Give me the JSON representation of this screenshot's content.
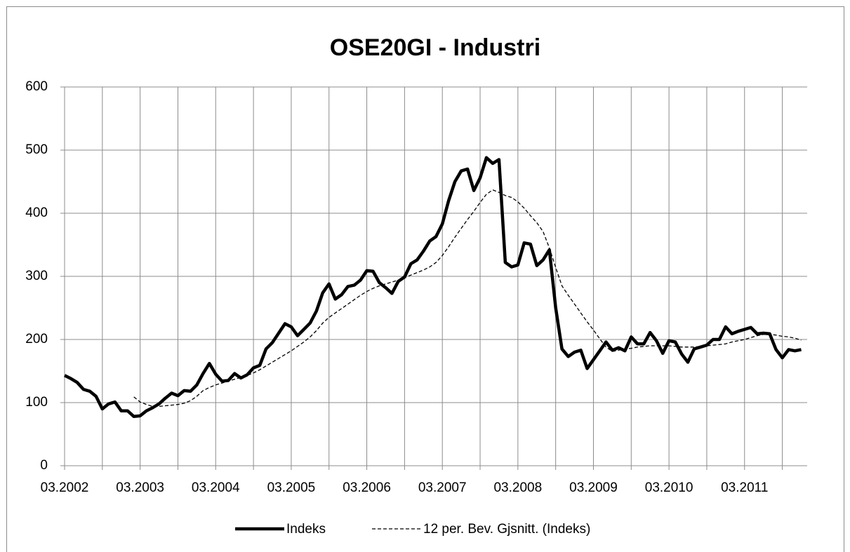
{
  "chart_data": {
    "type": "line",
    "title": "OSE20GI - Industri",
    "categories": [
      "03.2002",
      null,
      null,
      null,
      null,
      null,
      null,
      null,
      null,
      null,
      null,
      null,
      "03.2003",
      null,
      null,
      null,
      null,
      null,
      null,
      null,
      null,
      null,
      null,
      null,
      "03.2004",
      null,
      null,
      null,
      null,
      null,
      null,
      null,
      null,
      null,
      null,
      null,
      "03.2005",
      null,
      null,
      null,
      null,
      null,
      null,
      null,
      null,
      null,
      null,
      null,
      "03.2006",
      null,
      null,
      null,
      null,
      null,
      null,
      null,
      null,
      null,
      null,
      null,
      "03.2007",
      null,
      null,
      null,
      null,
      null,
      null,
      null,
      null,
      null,
      null,
      null,
      "03.2008",
      null,
      null,
      null,
      null,
      null,
      null,
      null,
      null,
      null,
      null,
      null,
      "03.2009",
      null,
      null,
      null,
      null,
      null,
      null,
      null,
      null,
      null,
      null,
      null,
      "03.2010",
      null,
      null,
      null,
      null,
      null,
      null,
      null,
      null,
      null,
      null,
      null,
      "03.2011",
      null,
      null,
      null,
      null,
      null,
      null,
      null,
      null,
      null
    ],
    "series": [
      {
        "name": "Indeks",
        "color": "#000000",
        "dash": false,
        "values": [
          143,
          138,
          132,
          121,
          118,
          110,
          90,
          98,
          101,
          87,
          87,
          78,
          79,
          87,
          92,
          98,
          107,
          115,
          111,
          119,
          118,
          128,
          146,
          162,
          145,
          134,
          135,
          146,
          139,
          144,
          155,
          159,
          185,
          195,
          210,
          225,
          220,
          206,
          216,
          226,
          245,
          274,
          288,
          264,
          271,
          284,
          286,
          294,
          309,
          308,
          290,
          282,
          273,
          292,
          299,
          320,
          326,
          340,
          356,
          363,
          383,
          420,
          450,
          467,
          470,
          436,
          456,
          488,
          479,
          485,
          322,
          315,
          318,
          353,
          351,
          317,
          326,
          342,
          250,
          185,
          173,
          180,
          183,
          154,
          168,
          182,
          196,
          183,
          187,
          182,
          204,
          193,
          193,
          211,
          198,
          178,
          198,
          196,
          177,
          164,
          185,
          188,
          191,
          200,
          200,
          220,
          209,
          213,
          216,
          219,
          209,
          210,
          209,
          184,
          171,
          184,
          182,
          184
        ]
      },
      {
        "name": "12 per. Bev. Gjsnitt. (Indeks)",
        "color": "#000000",
        "dash": true,
        "values": [
          null,
          null,
          null,
          null,
          null,
          null,
          null,
          null,
          null,
          null,
          null,
          109,
          101,
          97,
          94,
          94,
          95,
          96,
          97,
          99,
          103,
          110,
          119,
          124,
          128,
          131,
          134,
          137,
          140,
          143,
          147,
          152,
          158,
          164,
          170,
          176,
          182,
          189,
          196,
          204,
          214,
          226,
          235,
          242,
          249,
          256,
          263,
          270,
          276,
          281,
          285,
          288,
          291,
          294,
          298,
          302,
          306,
          310,
          315,
          322,
          333,
          347,
          362,
          376,
          390,
          403,
          417,
          430,
          437,
          433,
          428,
          425,
          418,
          408,
          396,
          385,
          371,
          345,
          314,
          285,
          270,
          256,
          242,
          228,
          215,
          201,
          188,
          181,
          183,
          185,
          186,
          188,
          189,
          190,
          190,
          190,
          190,
          189,
          188,
          188,
          188,
          189,
          190,
          191,
          192,
          193,
          196,
          198,
          200,
          203,
          206,
          208,
          208,
          207,
          205,
          204,
          202,
          199
        ]
      }
    ],
    "ylim": [
      0,
      600
    ],
    "yticks": [
      0,
      100,
      200,
      300,
      400,
      500,
      600
    ],
    "grid": true,
    "legend": "bottom"
  }
}
